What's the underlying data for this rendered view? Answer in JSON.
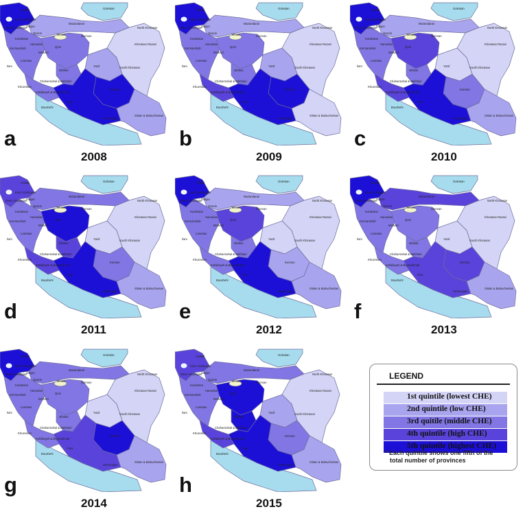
{
  "colors": {
    "sea": "#a7dcee",
    "border": "#6b6b9a",
    "q1": "#d4d4f6",
    "q2": "#a9a4ee",
    "q3": "#8176e3",
    "q4": "#5a43da",
    "q5": "#1d10d6",
    "tehran": "#f3f3cc"
  },
  "panels": [
    {
      "letter": "a",
      "year": "2008"
    },
    {
      "letter": "b",
      "year": "2009"
    },
    {
      "letter": "c",
      "year": "2010"
    },
    {
      "letter": "d",
      "year": "2011"
    },
    {
      "letter": "e",
      "year": "2012"
    },
    {
      "letter": "f",
      "year": "2013"
    },
    {
      "letter": "g",
      "year": "2014"
    },
    {
      "letter": "h",
      "year": "2015"
    }
  ],
  "province_labels": {
    "ardabil": "Ardabil",
    "east_az": "East Azarbayjan",
    "west_az": "West Azarbayjan",
    "golestan": "Golestan",
    "zanjan": "Zanjan",
    "qazvin": "Qazvin",
    "mazandaran": "Mazandaran",
    "north_kh": "North Khorasan",
    "kurdestan": "Kurdestan",
    "tehran": "Tehran",
    "semnan": "Semnan",
    "khorasan_razavi": "Khorasan Razavi",
    "kermanshah": "Kermanshah",
    "hamedan": "Hamedan",
    "qom": "Qom",
    "markazi": "Markazi",
    "lorestan": "Lorestan",
    "ilam": "Ilam",
    "isfahan": "Isfahan",
    "yazd": "Yazd",
    "south_kh": "South Khorasan",
    "chaharmahal": "Chaharmahal & Bakhtiari",
    "khuzestan": "Khuzestan",
    "kohkiloyeh": "Kohkiloyeh & Boyerahmad",
    "kerman": "Kerman",
    "bushehr": "Boushehr",
    "fars": "Fars",
    "hormozgan": "Hormozgan",
    "sistan": "Sistan & Balouchestan"
  },
  "quintiles": [
    {
      "nw": 5,
      "n": 2,
      "w": 3,
      "c": 3,
      "ne": 1,
      "se": 2,
      "s": 5,
      "sw": 3,
      "isf": 3,
      "yazd": 2,
      "ker": 5
    },
    {
      "nw": 5,
      "n": 2,
      "w": 3,
      "c": 3,
      "ne": 1,
      "se": 1,
      "s": 5,
      "sw": 4,
      "isf": 3,
      "yazd": 2,
      "ker": 5
    },
    {
      "nw": 5,
      "n": 2,
      "w": 3,
      "c": 4,
      "ne": 1,
      "se": 2,
      "s": 5,
      "sw": 4,
      "isf": 3,
      "yazd": 1,
      "ker": 3
    },
    {
      "nw": 4,
      "n": 3,
      "w": 3,
      "c": 5,
      "ne": 1,
      "se": 2,
      "s": 5,
      "sw": 4,
      "isf": 4,
      "yazd": 1,
      "ker": 3
    },
    {
      "nw": 5,
      "n": 2,
      "w": 3,
      "c": 4,
      "ne": 1,
      "se": 2,
      "s": 5,
      "sw": 3,
      "isf": 3,
      "yazd": 1,
      "ker": 2
    },
    {
      "nw": 5,
      "n": 4,
      "w": 3,
      "c": 3,
      "ne": 1,
      "se": 2,
      "s": 4,
      "sw": 3,
      "isf": 3,
      "yazd": 1,
      "ker": 4
    },
    {
      "nw": 5,
      "n": 3,
      "w": 3,
      "c": 3,
      "ne": 1,
      "se": 2,
      "s": 4,
      "sw": 3,
      "isf": 3,
      "yazd": 1,
      "ker": 5
    },
    {
      "nw": 4,
      "n": 3,
      "w": 3,
      "c": 5,
      "ne": 1,
      "se": 2,
      "s": 5,
      "sw": 4,
      "isf": 5,
      "yazd": 2,
      "ker": 3
    }
  ],
  "legend": {
    "title": "LEGEND",
    "items": [
      {
        "label": "1st quintile (lowest CHE)",
        "color": "#d4d4f6"
      },
      {
        "label": "2nd quintile (low CHE)",
        "color": "#a9a4ee"
      },
      {
        "label": "3rd quitile (middle CHE)",
        "color": "#8176e3"
      },
      {
        "label": "4th quintile (high CHE)",
        "color": "#5a43da"
      },
      {
        "label": "5th quintile (highest CHE)",
        "color": "#1d10d6"
      }
    ],
    "note_line1": "* Each quintile shows one fifth of the",
    "note_line2": "total number of provinces"
  }
}
